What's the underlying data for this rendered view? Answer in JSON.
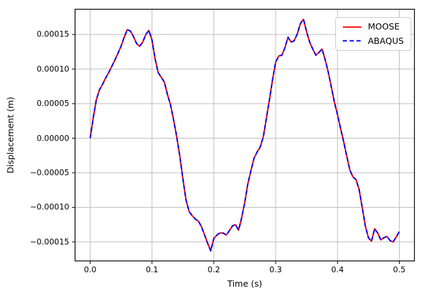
{
  "chart_data": {
    "type": "line",
    "title": "",
    "xlabel": "Time (s)",
    "ylabel": "Displacement (m)",
    "xlim": [
      -0.025,
      0.525
    ],
    "ylim": [
      -0.000178,
      0.000187
    ],
    "grid": true,
    "grid_color": "#bdbdbd",
    "legend_position": "upper right",
    "xticks": [
      0.0,
      0.1,
      0.2,
      0.3,
      0.4,
      0.5
    ],
    "xtick_labels": [
      "0.0",
      "0.1",
      "0.2",
      "0.3",
      "0.4",
      "0.5"
    ],
    "yticks": [
      -0.00015,
      -0.0001,
      -5e-05,
      0.0,
      5e-05,
      0.0001,
      0.00015
    ],
    "ytick_labels": [
      "−0.00015",
      "−0.00010",
      "−0.00005",
      "0.00000",
      "0.00005",
      "0.00010",
      "0.00015"
    ],
    "x": [
      0.0,
      0.005,
      0.01,
      0.015,
      0.02,
      0.025,
      0.03,
      0.035,
      0.04,
      0.045,
      0.05,
      0.055,
      0.06,
      0.065,
      0.07,
      0.075,
      0.08,
      0.085,
      0.09,
      0.095,
      0.1,
      0.105,
      0.11,
      0.115,
      0.12,
      0.125,
      0.13,
      0.135,
      0.14,
      0.145,
      0.15,
      0.155,
      0.16,
      0.165,
      0.17,
      0.175,
      0.18,
      0.185,
      0.19,
      0.195,
      0.2,
      0.205,
      0.21,
      0.215,
      0.22,
      0.225,
      0.23,
      0.235,
      0.24,
      0.245,
      0.25,
      0.255,
      0.26,
      0.265,
      0.27,
      0.275,
      0.28,
      0.285,
      0.29,
      0.295,
      0.3,
      0.305,
      0.31,
      0.315,
      0.32,
      0.325,
      0.33,
      0.335,
      0.34,
      0.345,
      0.35,
      0.355,
      0.36,
      0.365,
      0.37,
      0.375,
      0.38,
      0.385,
      0.39,
      0.395,
      0.4,
      0.405,
      0.41,
      0.415,
      0.42,
      0.425,
      0.43,
      0.435,
      0.44,
      0.445,
      0.45,
      0.455,
      0.46,
      0.465,
      0.47,
      0.475,
      0.48,
      0.485,
      0.49,
      0.495,
      0.5
    ],
    "series": [
      {
        "name": "MOOSE",
        "color": "#ff0000",
        "line_style": "solid",
        "values": [
          0.0,
          3e-05,
          5.6e-05,
          7e-05,
          7.8e-05,
          8.7e-05,
          9.5e-05,
          0.000104,
          0.000113,
          0.000123,
          0.000133,
          0.000146,
          0.000157,
          0.000155,
          0.000147,
          0.000137,
          0.000133,
          0.000139,
          0.00015,
          0.000156,
          0.000142,
          0.000115,
          9.5e-05,
          8.8e-05,
          8.1e-05,
          6.3e-05,
          4.8e-05,
          2.6e-05,
          2e-06,
          -2.6e-05,
          -5.9e-05,
          -8.9e-05,
          -0.000106,
          -0.000112,
          -0.000117,
          -0.00012,
          -0.000128,
          -0.00014,
          -0.000152,
          -0.000163,
          -0.000145,
          -0.00014,
          -0.000137,
          -0.000137,
          -0.00014,
          -0.000134,
          -0.000127,
          -0.000125,
          -0.000133,
          -0.000115,
          -9.3e-05,
          -6.6e-05,
          -4.7e-05,
          -2.9e-05,
          -2e-05,
          -1.3e-05,
          2e-06,
          2.9e-05,
          5.6e-05,
          8.5e-05,
          0.00011,
          0.000119,
          0.00012,
          0.000131,
          0.000146,
          0.000139,
          0.000141,
          0.000151,
          0.000166,
          0.000172,
          0.000154,
          0.000139,
          0.000129,
          0.00012,
          0.000124,
          0.000129,
          0.000114,
          9.6e-05,
          7.4e-05,
          5.2e-05,
          3.4e-05,
          1.4e-05,
          -5e-06,
          -2.6e-05,
          -4.6e-05,
          -5.6e-05,
          -6e-05,
          -7.4e-05,
          -0.0001,
          -0.000127,
          -0.000144,
          -0.000149,
          -0.000131,
          -0.000137,
          -0.000147,
          -0.000144,
          -0.000142,
          -0.000148,
          -0.00015,
          -0.000143,
          -0.000135
        ]
      },
      {
        "name": "ABAQUS",
        "color": "#0000ff",
        "line_style": "dashed",
        "values": [
          0.0,
          3e-05,
          5.6e-05,
          7e-05,
          7.8e-05,
          8.7e-05,
          9.5e-05,
          0.000104,
          0.000113,
          0.000123,
          0.000133,
          0.000146,
          0.000157,
          0.000155,
          0.000147,
          0.000137,
          0.000133,
          0.000139,
          0.00015,
          0.000156,
          0.000142,
          0.000115,
          9.5e-05,
          8.8e-05,
          8.1e-05,
          6.3e-05,
          4.8e-05,
          2.6e-05,
          2e-06,
          -2.6e-05,
          -5.9e-05,
          -8.9e-05,
          -0.000106,
          -0.000112,
          -0.000117,
          -0.00012,
          -0.000128,
          -0.00014,
          -0.000152,
          -0.000163,
          -0.000145,
          -0.00014,
          -0.000137,
          -0.000137,
          -0.00014,
          -0.000134,
          -0.000127,
          -0.000125,
          -0.000133,
          -0.000115,
          -9.3e-05,
          -6.6e-05,
          -4.7e-05,
          -2.9e-05,
          -2e-05,
          -1.3e-05,
          2e-06,
          2.9e-05,
          5.6e-05,
          8.5e-05,
          0.00011,
          0.000119,
          0.00012,
          0.000131,
          0.000146,
          0.000139,
          0.000141,
          0.000151,
          0.000166,
          0.000172,
          0.000154,
          0.000139,
          0.000129,
          0.00012,
          0.000124,
          0.000129,
          0.000114,
          9.6e-05,
          7.4e-05,
          5.2e-05,
          3.4e-05,
          1.4e-05,
          -5e-06,
          -2.6e-05,
          -4.6e-05,
          -5.6e-05,
          -6e-05,
          -7.4e-05,
          -0.0001,
          -0.000127,
          -0.000144,
          -0.000149,
          -0.000131,
          -0.000137,
          -0.000147,
          -0.000144,
          -0.000142,
          -0.000148,
          -0.00015,
          -0.000143,
          -0.000135
        ]
      }
    ]
  }
}
